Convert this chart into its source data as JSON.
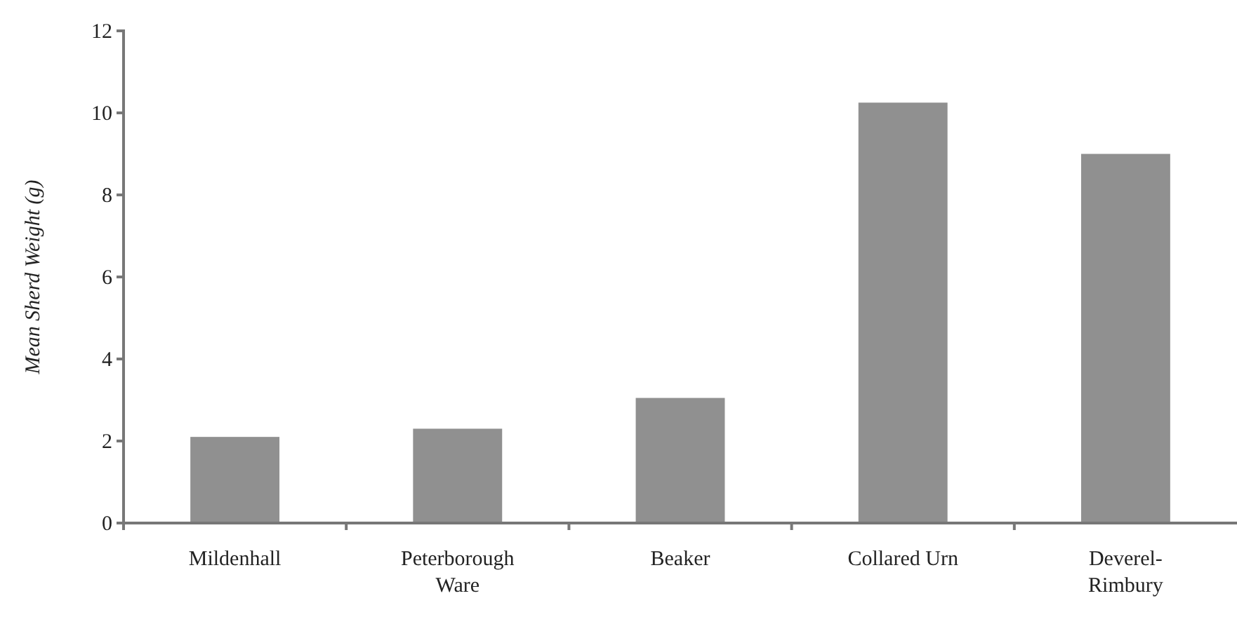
{
  "chart_data": {
    "type": "bar",
    "ylabel": "Mean Sherd Weight (g)",
    "categories": [
      "Mildenhall",
      "Peterborough Ware",
      "Beaker",
      "Collared Urn",
      "Deverel-Rimbury"
    ],
    "values": [
      2.1,
      2.3,
      3.05,
      10.25,
      9.0
    ],
    "color": "#909090",
    "ylim": [
      0,
      12
    ],
    "yticks": [
      0,
      2,
      4,
      6,
      8,
      10,
      12
    ],
    "grid": false
  }
}
